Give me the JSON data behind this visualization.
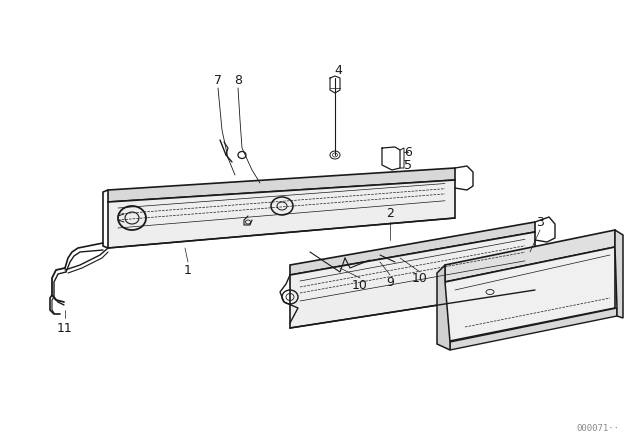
{
  "bg_color": "#ffffff",
  "line_color": "#1a1a1a",
  "text_color": "#1a1a1a",
  "watermark": "000071··",
  "fig_width": 6.4,
  "fig_height": 4.48,
  "dpi": 100
}
